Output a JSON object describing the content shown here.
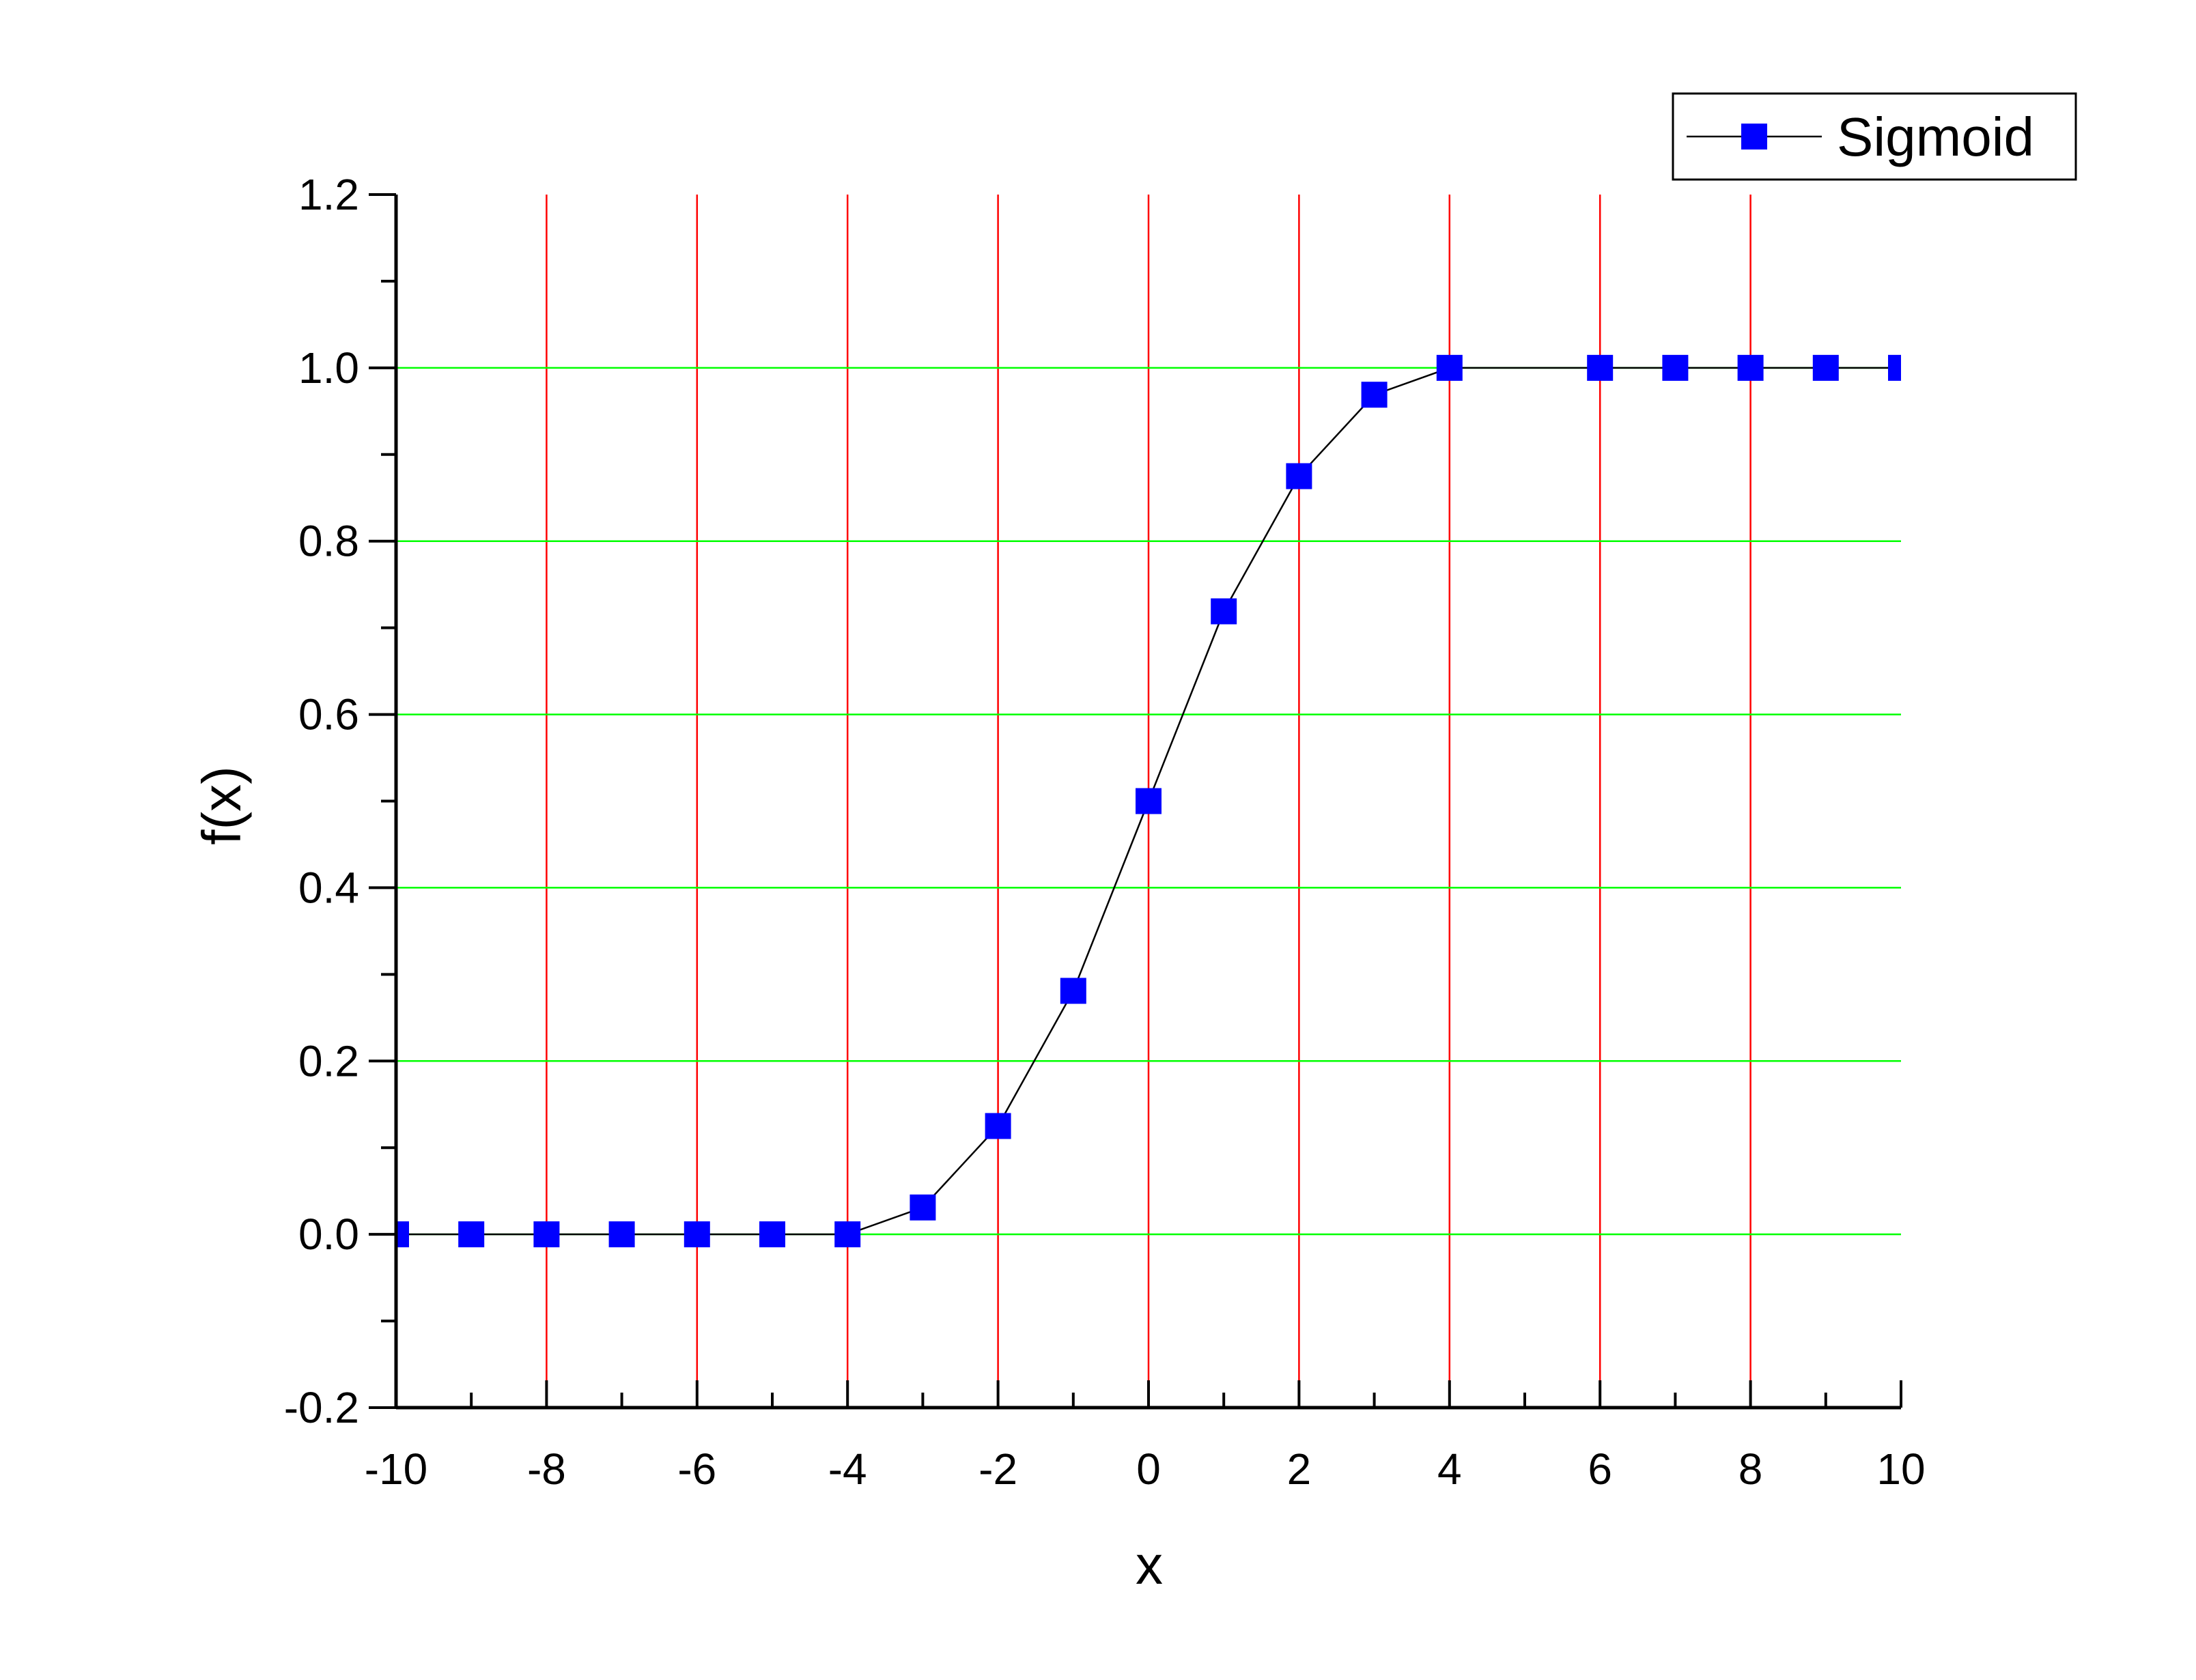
{
  "chart_data": {
    "type": "line",
    "title": "",
    "xlabel": "x",
    "ylabel": "f(x)",
    "xlim": [
      -10,
      10
    ],
    "ylim": [
      -0.2,
      1.2
    ],
    "x_ticks": [
      -10,
      -8,
      -6,
      -4,
      -2,
      0,
      2,
      4,
      6,
      8,
      10
    ],
    "x_tick_labels": [
      "-10",
      "-8",
      "-6",
      "-4",
      "-2",
      "0",
      "2",
      "4",
      "6",
      "8",
      "10"
    ],
    "x_minor_ticks": [
      -9,
      -7,
      -5,
      -3,
      -1,
      1,
      3,
      5,
      7,
      9
    ],
    "y_ticks": [
      -0.2,
      0.0,
      0.2,
      0.4,
      0.6,
      0.8,
      1.0,
      1.2
    ],
    "y_tick_labels": [
      "-0.2",
      "0.0",
      "0.2",
      "0.4",
      "0.6",
      "0.8",
      "1.0",
      "1.2"
    ],
    "y_minor_ticks": [
      -0.1,
      0.1,
      0.3,
      0.5,
      0.7,
      0.9,
      1.1
    ],
    "x_grid_values": [
      -8,
      -6,
      -4,
      -2,
      0,
      2,
      4,
      6,
      8
    ],
    "y_grid_values": [
      0.0,
      0.2,
      0.4,
      0.6,
      0.8,
      1.0
    ],
    "x_grid_color": "#ff0000",
    "y_grid_color": "#00ff00",
    "legend_position": "top-right",
    "series": [
      {
        "name": "Sigmoid",
        "marker": "square",
        "marker_color": "#0000ff",
        "line_color": "#000000",
        "x": [
          -10,
          -9,
          -8,
          -7,
          -6,
          -5,
          -4,
          -3,
          -2,
          -1,
          0,
          1,
          2,
          3,
          4,
          6,
          7,
          8,
          9,
          10
        ],
        "y": [
          0.0,
          0.0,
          0.0,
          0.0,
          0.0,
          0.0,
          0.0,
          0.031,
          0.125,
          0.281,
          0.5,
          0.719,
          0.875,
          0.969,
          1.0,
          1.0,
          1.0,
          1.0,
          1.0,
          1.0
        ]
      }
    ]
  }
}
